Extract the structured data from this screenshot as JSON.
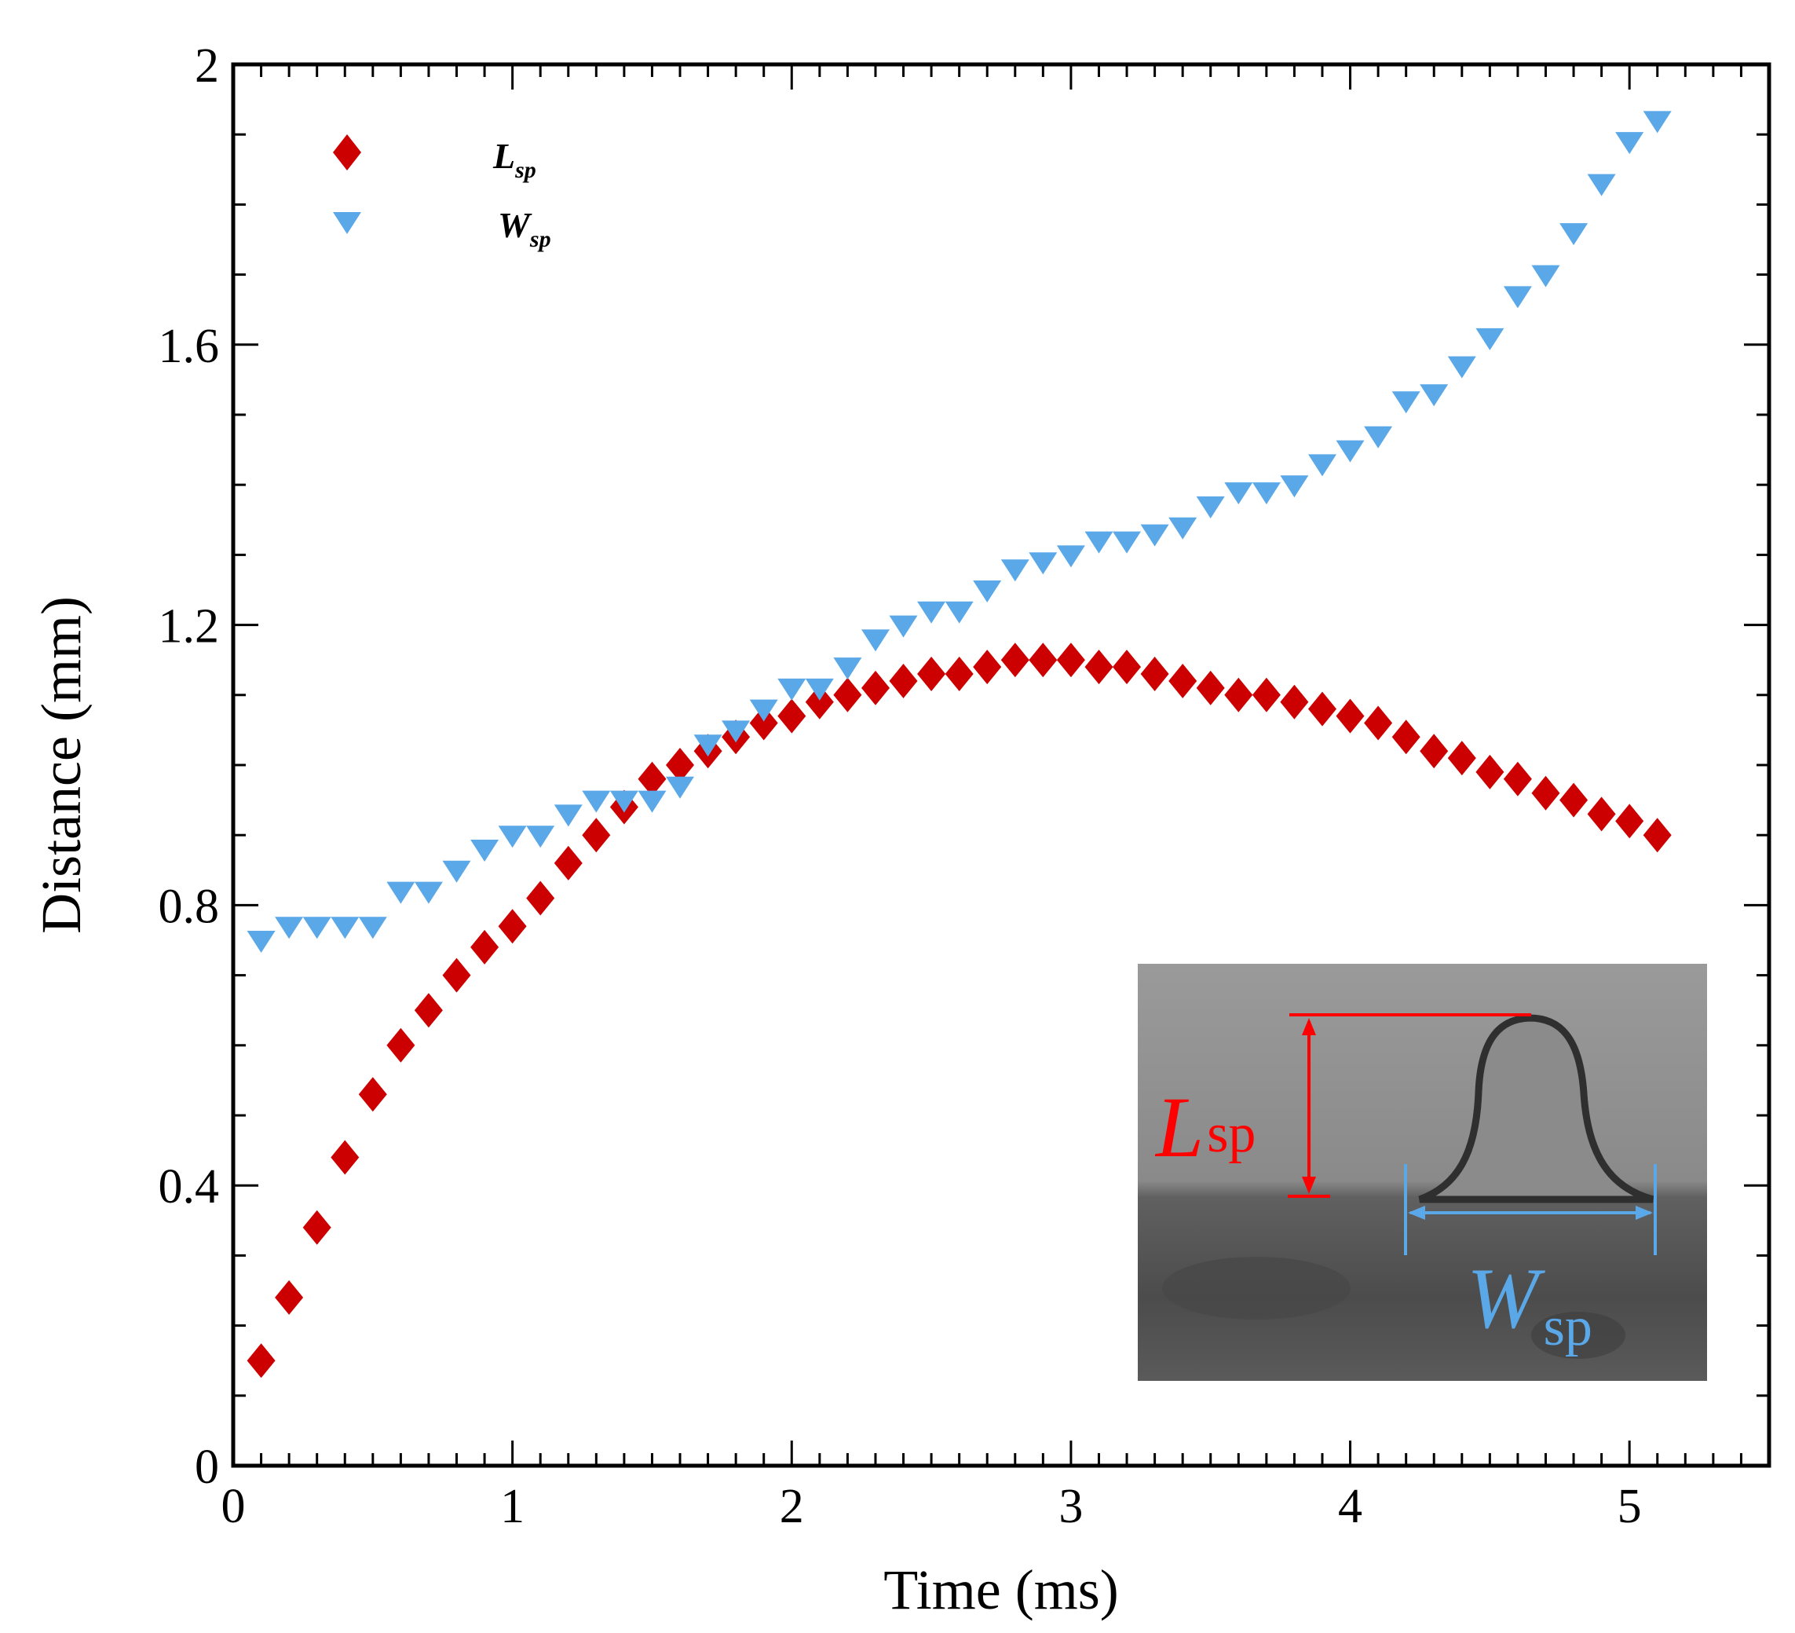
{
  "chart_data": {
    "type": "scatter",
    "title": "",
    "xlabel": "Time (ms)",
    "ylabel": "Distance (mm)",
    "xlim": [
      0,
      5.5
    ],
    "ylim": [
      0,
      2
    ],
    "x_major_ticks": [
      0,
      1,
      2,
      3,
      4,
      5
    ],
    "x_tick_labels": [
      "0",
      "1",
      "2",
      "3",
      "4",
      "5"
    ],
    "y_major_ticks": [
      0,
      0.4,
      0.8,
      1.2,
      1.6,
      2
    ],
    "y_tick_labels": [
      "0",
      "0.4",
      "0.8",
      "1.2",
      "1.6",
      "2"
    ],
    "grid": false,
    "legend_position": "top-left",
    "series": [
      {
        "name": "L",
        "name_sub": "sp",
        "marker": "diamond",
        "color": "#cc0000",
        "x": [
          0.1,
          0.2,
          0.3,
          0.4,
          0.5,
          0.6,
          0.7,
          0.8,
          0.9,
          1.0,
          1.1,
          1.2,
          1.3,
          1.4,
          1.5,
          1.6,
          1.7,
          1.8,
          1.9,
          2.0,
          2.1,
          2.2,
          2.3,
          2.4,
          2.5,
          2.6,
          2.7,
          2.8,
          2.9,
          3.0,
          3.1,
          3.2,
          3.3,
          3.4,
          3.5,
          3.6,
          3.7,
          3.8,
          3.9,
          4.0,
          4.1,
          4.2,
          4.3,
          4.4,
          4.5,
          4.6,
          4.7,
          4.8,
          4.9,
          5.0,
          5.1
        ],
        "values": [
          0.15,
          0.24,
          0.34,
          0.44,
          0.53,
          0.6,
          0.65,
          0.7,
          0.74,
          0.77,
          0.81,
          0.86,
          0.9,
          0.94,
          0.98,
          1.0,
          1.02,
          1.04,
          1.06,
          1.07,
          1.09,
          1.1,
          1.11,
          1.12,
          1.13,
          1.13,
          1.14,
          1.15,
          1.15,
          1.15,
          1.14,
          1.14,
          1.13,
          1.12,
          1.11,
          1.1,
          1.1,
          1.09,
          1.08,
          1.07,
          1.06,
          1.04,
          1.02,
          1.01,
          0.99,
          0.98,
          0.96,
          0.95,
          0.93,
          0.92,
          0.9
        ]
      },
      {
        "name": "W",
        "name_sub": "sp",
        "marker": "triangle-down",
        "color": "#5aa8e8",
        "x": [
          0.1,
          0.2,
          0.3,
          0.4,
          0.5,
          0.6,
          0.7,
          0.8,
          0.9,
          1.0,
          1.1,
          1.2,
          1.3,
          1.4,
          1.5,
          1.6,
          1.7,
          1.8,
          1.9,
          2.0,
          2.1,
          2.2,
          2.3,
          2.4,
          2.5,
          2.6,
          2.7,
          2.8,
          2.9,
          3.0,
          3.1,
          3.2,
          3.3,
          3.4,
          3.5,
          3.6,
          3.7,
          3.8,
          3.9,
          4.0,
          4.1,
          4.2,
          4.3,
          4.4,
          4.5,
          4.6,
          4.7,
          4.8,
          4.9,
          5.0,
          5.1
        ],
        "values": [
          0.75,
          0.77,
          0.77,
          0.77,
          0.77,
          0.82,
          0.82,
          0.85,
          0.88,
          0.9,
          0.9,
          0.93,
          0.95,
          0.95,
          0.95,
          0.97,
          1.03,
          1.05,
          1.08,
          1.11,
          1.11,
          1.14,
          1.18,
          1.2,
          1.22,
          1.22,
          1.25,
          1.28,
          1.29,
          1.3,
          1.32,
          1.32,
          1.33,
          1.34,
          1.37,
          1.39,
          1.39,
          1.4,
          1.43,
          1.45,
          1.47,
          1.52,
          1.53,
          1.57,
          1.61,
          1.67,
          1.7,
          1.76,
          1.83,
          1.89,
          1.92
        ]
      }
    ]
  },
  "inset": {
    "label_length_main": "L",
    "label_length_sub": "sp",
    "label_width_main": "W",
    "label_width_sub": "sp",
    "length_color": "#ff0000",
    "width_color": "#5aa8e8"
  }
}
